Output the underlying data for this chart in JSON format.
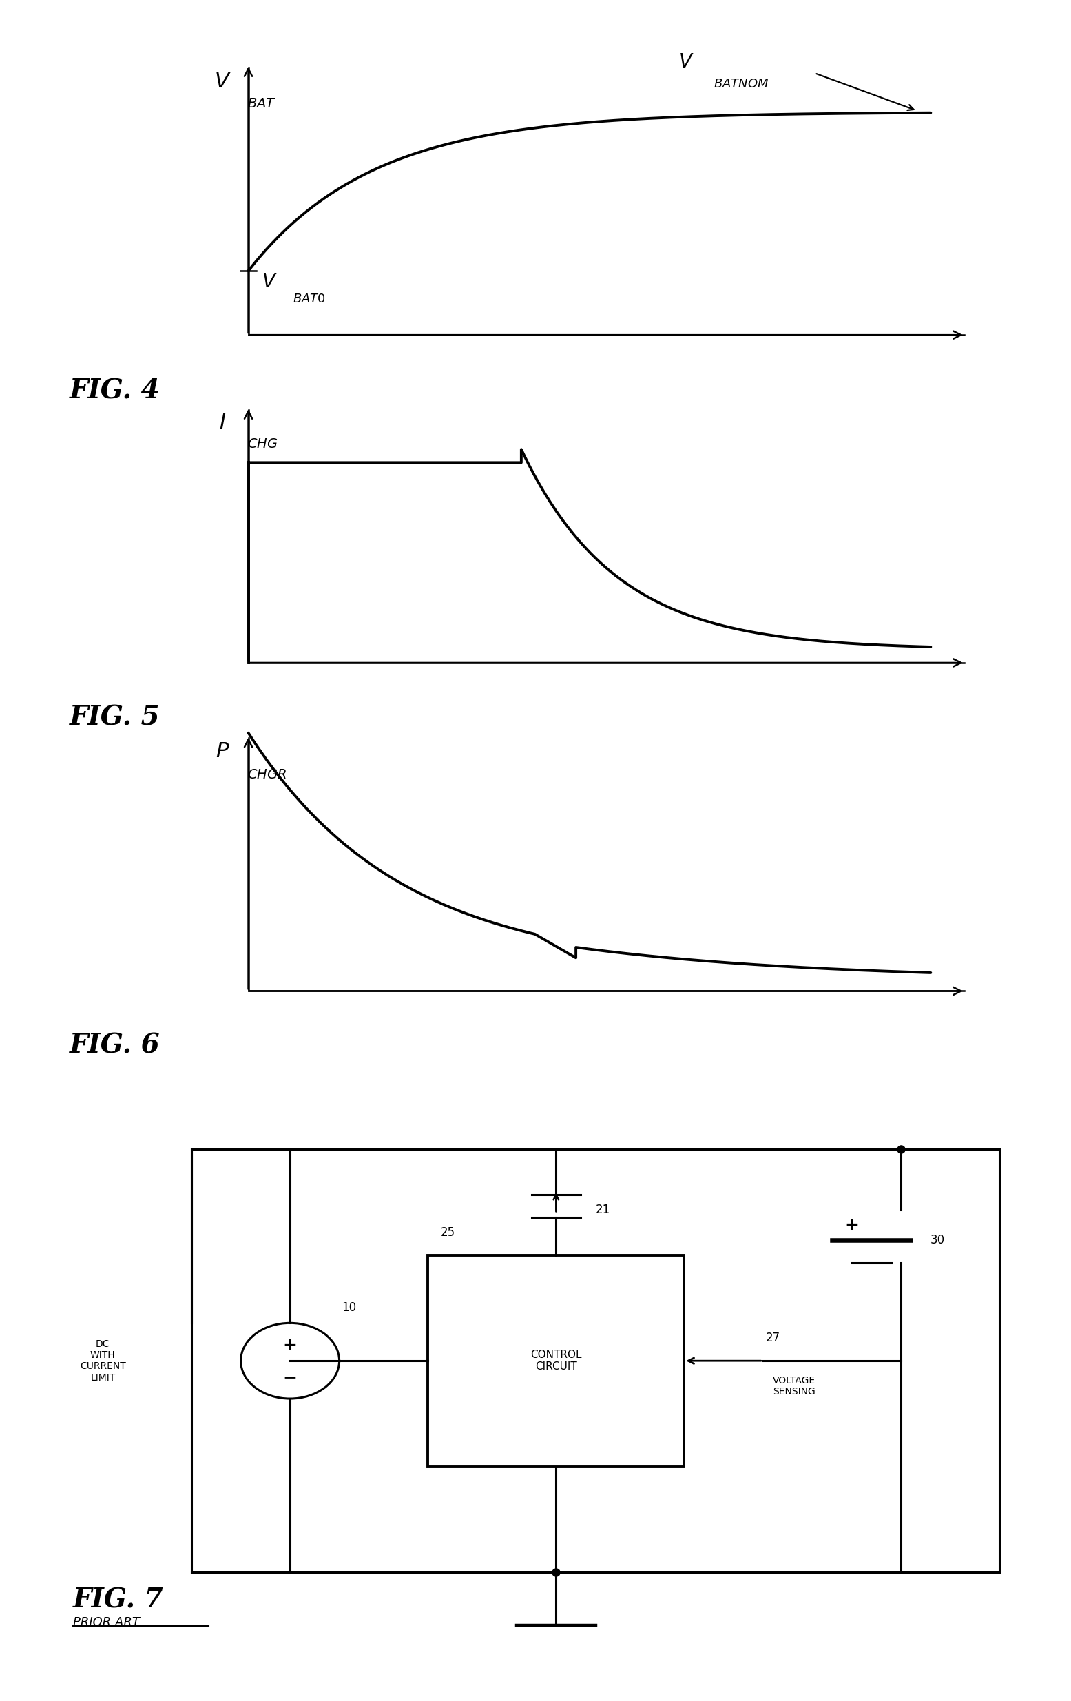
{
  "bg_color": "#ffffff",
  "fig_width": 15.55,
  "fig_height": 24.69,
  "line_color": "#000000",
  "curve_lw": 2.8,
  "axis_lw": 1.8,
  "fig4_caption": "FIG. 4",
  "fig5_caption": "FIG. 5",
  "fig6_caption": "FIG. 6",
  "fig7_caption": "FIG. 7",
  "fig7_sub": "PRIOR ART",
  "vbat_label": "V",
  "vbat_sub": "BAT",
  "vbat0_label": "V",
  "vbat0_sub": "BAT0",
  "vbatnom_label": "V",
  "vbatnom_sub": "BATNOM",
  "ichg_label": "I",
  "ichg_sub": "CHG",
  "pchgr_label": "P",
  "pchgr_sub": "CHGR",
  "circuit_dc": "DC\nWITH\nCURRENT\nLIMIT",
  "n10": "10",
  "n21": "21",
  "n25": "25",
  "n27": "27",
  "n30": "30",
  "ctrl_label": "CONTROL\nCIRCUIT",
  "vsense_label": "VOLTAGE\nSENSING"
}
